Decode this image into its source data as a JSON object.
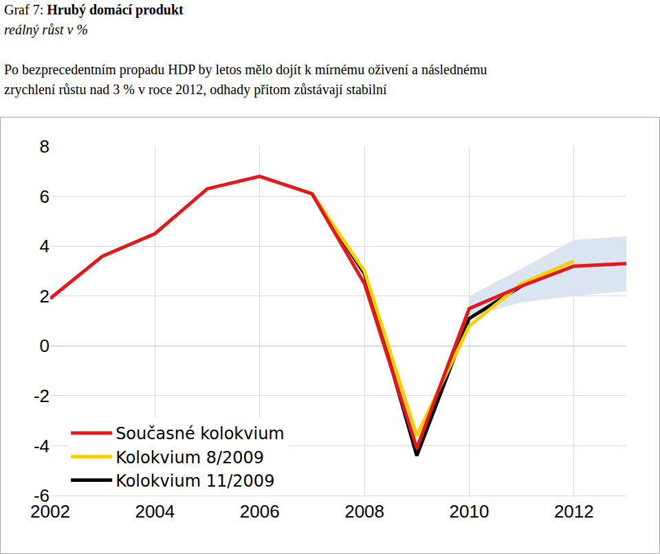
{
  "chart_data": {
    "type": "line",
    "title": "Graf 7: Hrubý domácí produkt",
    "subtitle": "reálný růst v %",
    "note": [
      "Po bezprecedentním propadu HDP by letos mělo dojít k mírnému oživení a následnému",
      "zrychlení růstu nad 3 % v roce 2012, odhady přitom zůstávají stabilní"
    ],
    "x": [
      2002,
      2003,
      2004,
      2005,
      2006,
      2007,
      2008,
      2009,
      2010,
      2011,
      2012,
      2013
    ],
    "series": [
      {
        "name": "Současné kolokvium",
        "color": "#e2191b",
        "values": [
          1.9,
          3.6,
          4.5,
          6.3,
          6.8,
          6.1,
          2.5,
          -4.1,
          1.5,
          2.4,
          3.2,
          3.3
        ]
      },
      {
        "name": "Kolokvium 8/2009",
        "color": "#ffcc00",
        "values": [
          null,
          null,
          null,
          null,
          null,
          6.1,
          3.0,
          -3.6,
          0.8,
          2.5,
          3.4,
          null
        ]
      },
      {
        "name": "Kolokvium 11/2009",
        "color": "#000000",
        "values": [
          null,
          null,
          null,
          null,
          null,
          6.1,
          2.9,
          -4.4,
          1.1,
          2.4,
          null,
          null
        ]
      }
    ],
    "band": {
      "color": "#dbe5f1",
      "lower": [
        null,
        null,
        null,
        null,
        null,
        null,
        null,
        null,
        1.15,
        1.75,
        2.0,
        2.2
      ],
      "upper": [
        null,
        null,
        null,
        null,
        null,
        null,
        null,
        null,
        2.0,
        3.1,
        4.25,
        4.4
      ]
    },
    "xlim": [
      2002,
      2013
    ],
    "xticks": [
      2002,
      2004,
      2006,
      2008,
      2010,
      2012
    ],
    "ylim": [
      -6,
      8
    ],
    "yticks": [
      -6,
      -4,
      -2,
      0,
      2,
      4,
      6,
      8
    ],
    "grid": true,
    "legend": "lower left"
  }
}
